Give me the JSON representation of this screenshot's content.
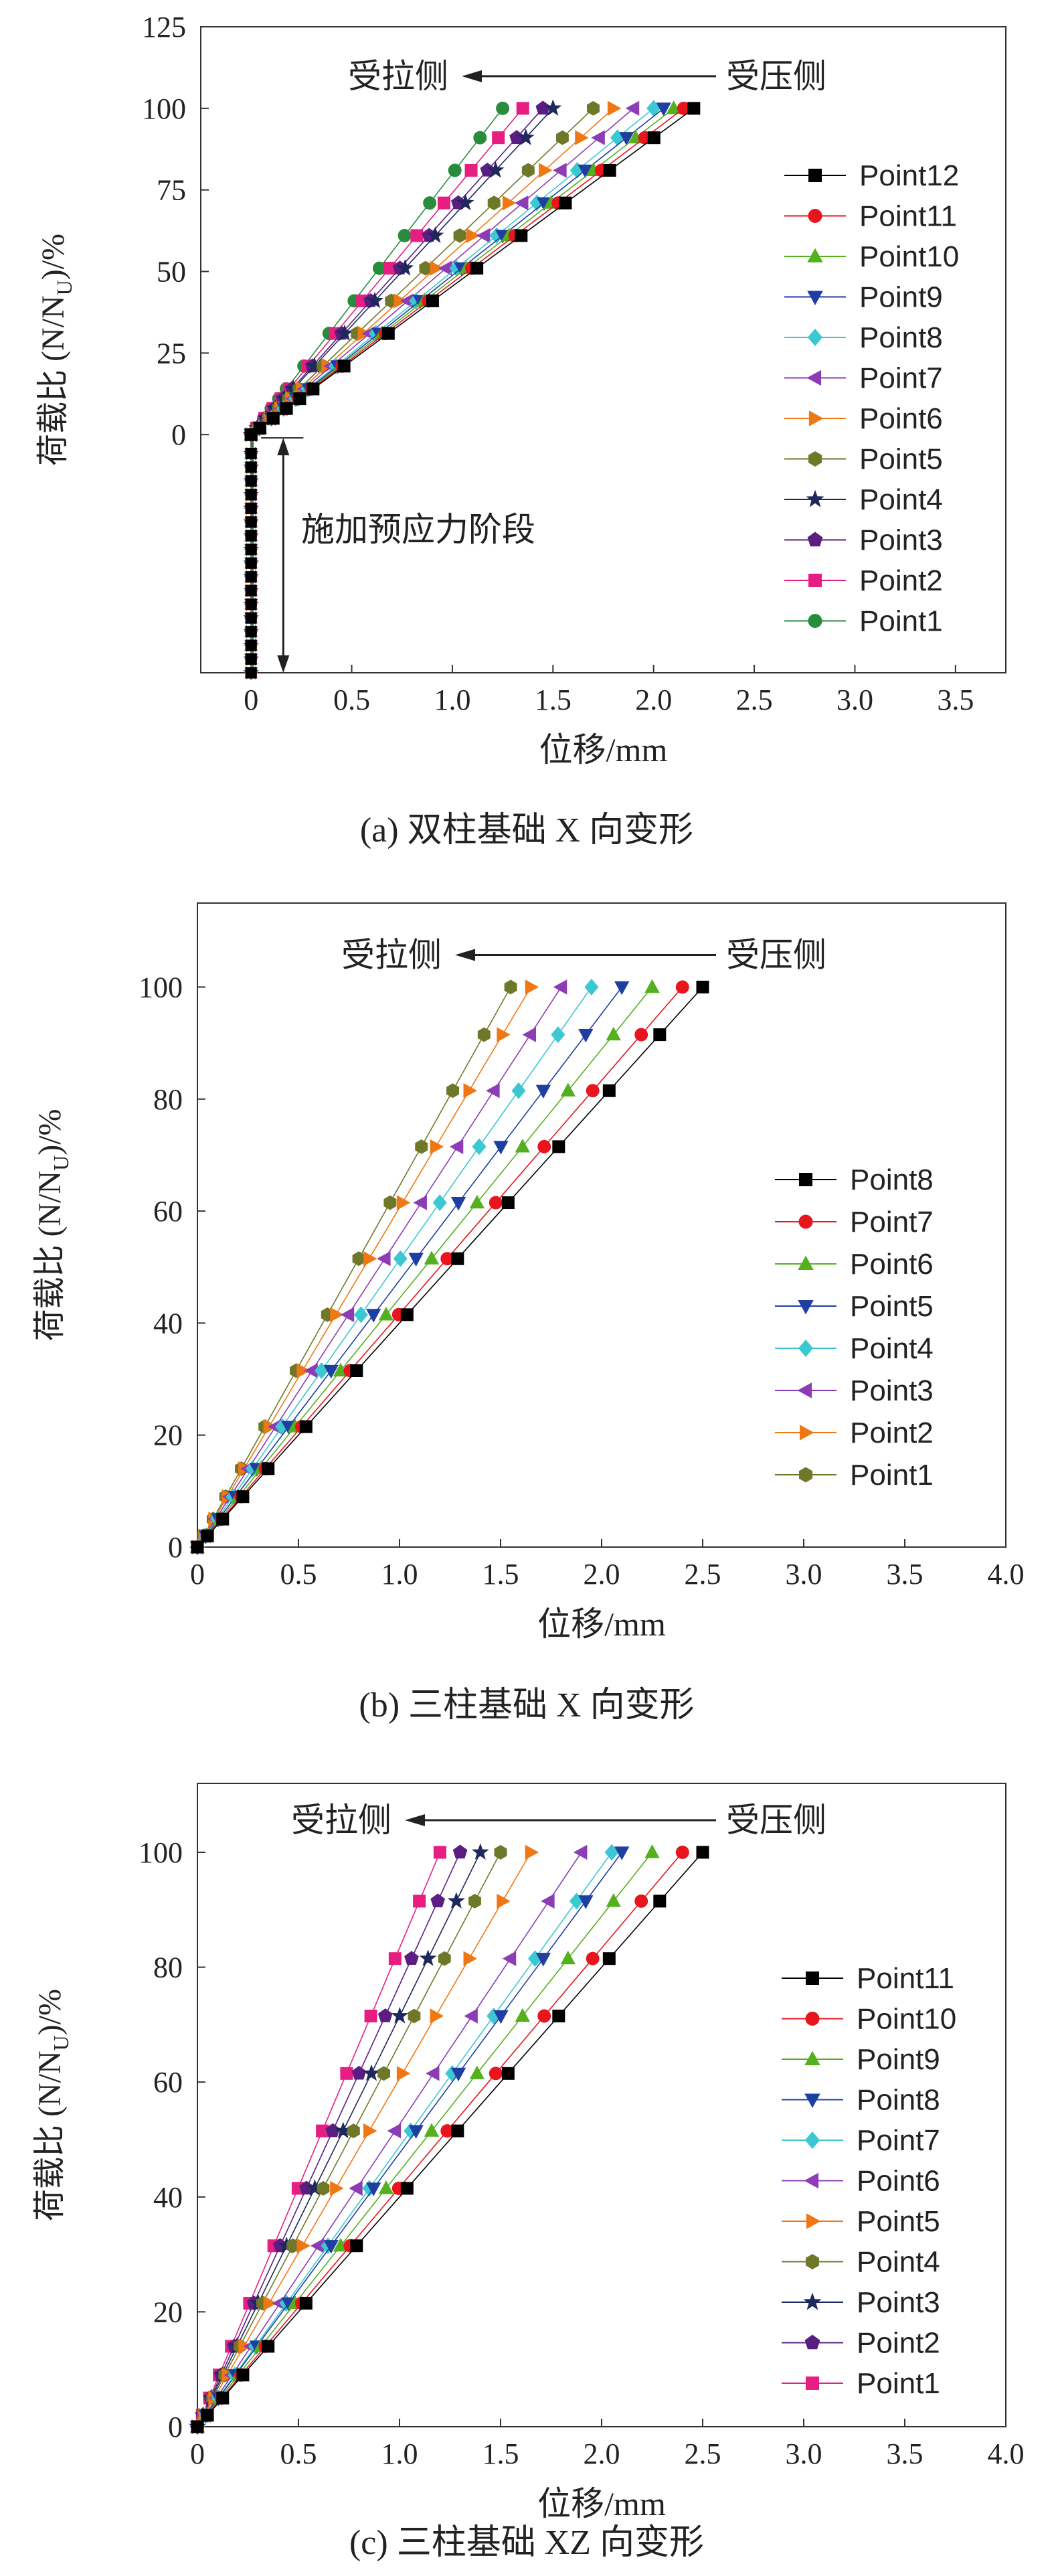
{
  "chart_data": [
    {
      "type": "line",
      "caption": "(a) 双柱基础 X 向变形",
      "xlabel": "位移/mm",
      "ylabel": "荷载比 (N/N",
      "ylabel_sub": "U",
      "ylabel_tail": ")/%",
      "xlim": [
        -0.25,
        3.75
      ],
      "ylim": [
        -73,
        125
      ],
      "x_ticks": [
        0,
        0.5,
        1.0,
        1.5,
        2.0,
        2.5,
        3.0,
        3.5
      ],
      "x_tick_labels": [
        "0",
        "0.5",
        "1.0",
        "1.5",
        "2.0",
        "2.5",
        "3.0",
        "3.5"
      ],
      "y_ticks": [
        0,
        25,
        50,
        75,
        100,
        125
      ],
      "y_tick_labels": [
        "0",
        "25",
        "50",
        "75",
        "100",
        "125"
      ],
      "legend_position": "right",
      "annotations": {
        "tension_side": "受拉侧",
        "compression_side": "受压侧",
        "prestress_stage": "施加预应力阶段"
      },
      "y_levels": [
        0,
        2,
        5,
        8,
        11,
        14,
        21,
        31,
        41,
        51,
        61,
        71,
        81,
        91,
        100
      ],
      "prestress_stage": {
        "x_range": [
          0,
          0.01
        ],
        "y_range": [
          -73,
          0
        ]
      },
      "series": [
        {
          "name": "Point12",
          "color": "#000000",
          "marker": "square",
          "final_x": 2.2
        },
        {
          "name": "Point11",
          "color": "#e8141e",
          "marker": "circle",
          "final_x": 2.15
        },
        {
          "name": "Point10",
          "color": "#55b01e",
          "marker": "triangle-up",
          "final_x": 2.1
        },
        {
          "name": "Point9",
          "color": "#1f3fa0",
          "marker": "triangle-down",
          "final_x": 2.05
        },
        {
          "name": "Point8",
          "color": "#3cc8d2",
          "marker": "diamond",
          "final_x": 2.0
        },
        {
          "name": "Point7",
          "color": "#8c3cb4",
          "marker": "triangle-left",
          "final_x": 1.9
        },
        {
          "name": "Point6",
          "color": "#f07814",
          "marker": "triangle-right",
          "final_x": 1.8
        },
        {
          "name": "Point5",
          "color": "#6e7828",
          "marker": "hexagon",
          "final_x": 1.7
        },
        {
          "name": "Point4",
          "color": "#1e285a",
          "marker": "star",
          "final_x": 1.5
        },
        {
          "name": "Point3",
          "color": "#5a1e82",
          "marker": "pentagon",
          "final_x": 1.45
        },
        {
          "name": "Point2",
          "color": "#e61e82",
          "marker": "square",
          "final_x": 1.35
        },
        {
          "name": "Point1",
          "color": "#288c3c",
          "marker": "circle",
          "final_x": 1.25
        }
      ]
    },
    {
      "type": "line",
      "caption": "(b) 三柱基础 X 向变形",
      "xlabel": "位移/mm",
      "ylabel": "荷载比 (N/N",
      "ylabel_sub": "U",
      "ylabel_tail": ")/%",
      "xlim": [
        0,
        4.0
      ],
      "ylim": [
        0,
        115
      ],
      "x_ticks": [
        0,
        0.5,
        1.0,
        1.5,
        2.0,
        2.5,
        3.0,
        3.5,
        4.0
      ],
      "x_tick_labels": [
        "0",
        "0.5",
        "1.0",
        "1.5",
        "2.0",
        "2.5",
        "3.0",
        "3.5",
        "4.0"
      ],
      "y_ticks": [
        0,
        20,
        40,
        60,
        80,
        100
      ],
      "y_tick_labels": [
        "0",
        "20",
        "40",
        "60",
        "80",
        "100"
      ],
      "legend_position": "right",
      "annotations": {
        "tension_side": "受拉侧",
        "compression_side": "受压侧"
      },
      "y_levels": [
        0,
        2,
        5,
        9,
        14,
        21.5,
        31.5,
        41.5,
        51.5,
        61.5,
        71.5,
        81.5,
        91.5,
        100
      ],
      "series": [
        {
          "name": "Point8",
          "color": "#000000",
          "marker": "square",
          "final_x": 2.5
        },
        {
          "name": "Point7",
          "color": "#e8141e",
          "marker": "circle",
          "final_x": 2.4
        },
        {
          "name": "Point6",
          "color": "#55b01e",
          "marker": "triangle-up",
          "final_x": 2.25
        },
        {
          "name": "Point5",
          "color": "#1f3fa0",
          "marker": "triangle-down",
          "final_x": 2.1
        },
        {
          "name": "Point4",
          "color": "#3cc8d2",
          "marker": "diamond",
          "final_x": 1.95
        },
        {
          "name": "Point3",
          "color": "#8c3cb4",
          "marker": "triangle-left",
          "final_x": 1.8
        },
        {
          "name": "Point2",
          "color": "#f07814",
          "marker": "triangle-right",
          "final_x": 1.65
        },
        {
          "name": "Point1",
          "color": "#6e7828",
          "marker": "hexagon",
          "final_x": 1.55
        }
      ]
    },
    {
      "type": "line",
      "caption": "(c) 三柱基础 XZ 向变形",
      "xlabel": "位移/mm",
      "ylabel": "荷载比 (N/N",
      "ylabel_sub": "U",
      "ylabel_tail": ")/%",
      "xlim": [
        0,
        4.0
      ],
      "ylim": [
        0,
        112
      ],
      "x_ticks": [
        0,
        0.5,
        1.0,
        1.5,
        2.0,
        2.5,
        3.0,
        3.5,
        4.0
      ],
      "x_tick_labels": [
        "0",
        "0.5",
        "1.0",
        "1.5",
        "2.0",
        "2.5",
        "3.0",
        "3.5",
        "4.0"
      ],
      "y_ticks": [
        0,
        20,
        40,
        60,
        80,
        100
      ],
      "y_tick_labels": [
        "0",
        "20",
        "40",
        "60",
        "80",
        "100"
      ],
      "legend_position": "right",
      "annotations": {
        "tension_side": "受拉侧",
        "compression_side": "受压侧"
      },
      "y_levels": [
        0,
        2,
        5,
        9,
        14,
        21.5,
        31.5,
        41.5,
        51.5,
        61.5,
        71.5,
        81.5,
        91.5,
        100
      ],
      "series": [
        {
          "name": "Point11",
          "color": "#000000",
          "marker": "square",
          "final_x": 2.5
        },
        {
          "name": "Point10",
          "color": "#e8141e",
          "marker": "circle",
          "final_x": 2.4
        },
        {
          "name": "Point9",
          "color": "#55b01e",
          "marker": "triangle-up",
          "final_x": 2.25
        },
        {
          "name": "Point8",
          "color": "#1f3fa0",
          "marker": "triangle-down",
          "final_x": 2.1
        },
        {
          "name": "Point7",
          "color": "#3cc8d2",
          "marker": "diamond",
          "final_x": 2.05
        },
        {
          "name": "Point6",
          "color": "#8c3cb4",
          "marker": "triangle-left",
          "final_x": 1.9
        },
        {
          "name": "Point5",
          "color": "#f07814",
          "marker": "triangle-right",
          "final_x": 1.65
        },
        {
          "name": "Point4",
          "color": "#6e7828",
          "marker": "hexagon",
          "final_x": 1.5
        },
        {
          "name": "Point3",
          "color": "#1e285a",
          "marker": "star",
          "final_x": 1.4
        },
        {
          "name": "Point2",
          "color": "#5a1e82",
          "marker": "pentagon",
          "final_x": 1.3
        },
        {
          "name": "Point1",
          "color": "#e61e82",
          "marker": "square",
          "final_x": 1.2
        }
      ]
    }
  ]
}
